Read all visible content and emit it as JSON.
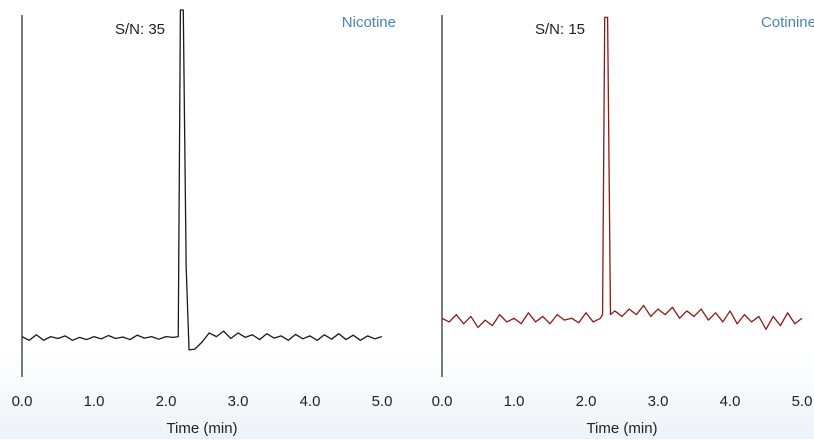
{
  "chart_data": [
    {
      "type": "line",
      "title": "Nicotine",
      "annotation": "S/N: 35",
      "xlabel": "Time (min)",
      "xlim": [
        0,
        5
      ],
      "ylim": [
        0,
        100
      ],
      "xticks": [
        {
          "value": 0,
          "label": "0.0"
        },
        {
          "value": 1,
          "label": "1.0"
        },
        {
          "value": 2,
          "label": "2.0"
        },
        {
          "value": 3,
          "label": "3.0"
        },
        {
          "value": 4,
          "label": "4.0"
        },
        {
          "value": 5,
          "label": "5.0"
        }
      ],
      "x": [
        0.0,
        0.1,
        0.2,
        0.3,
        0.4,
        0.5,
        0.6,
        0.7,
        0.8,
        0.9,
        1.0,
        1.1,
        1.2,
        1.3,
        1.4,
        1.5,
        1.6,
        1.7,
        1.8,
        1.9,
        2.0,
        2.1,
        2.17,
        2.2,
        2.24,
        2.28,
        2.32,
        2.4,
        2.5,
        2.6,
        2.7,
        2.8,
        2.9,
        3.0,
        3.1,
        3.2,
        3.3,
        3.4,
        3.5,
        3.6,
        3.7,
        3.8,
        3.9,
        4.0,
        4.1,
        4.2,
        4.3,
        4.4,
        4.5,
        4.6,
        4.7,
        4.8,
        4.9,
        5.0
      ],
      "series": [
        {
          "color": "#1a1a1a",
          "values": [
            11,
            10,
            11.5,
            10,
            11,
            10.5,
            11.2,
            10,
            10.8,
            10.2,
            11,
            10.4,
            11.3,
            10.5,
            10.9,
            10.2,
            11.4,
            10.6,
            11,
            10.3,
            11,
            10.8,
            11,
            100,
            100,
            30,
            7.4,
            7.6,
            9.5,
            12,
            11,
            12.5,
            10.5,
            12,
            10.8,
            11.5,
            10.2,
            11.8,
            10.6,
            11.2,
            10,
            11.6,
            10.4,
            11.2,
            10,
            11.5,
            10.3,
            11.8,
            10.2,
            11.4,
            10,
            11.2,
            10.4,
            11
          ]
        }
      ]
    },
    {
      "type": "line",
      "title": "Cotinine",
      "annotation": "S/N: 15",
      "xlabel": "Time (min)",
      "xlim": [
        0,
        5
      ],
      "ylim": [
        0,
        100
      ],
      "xticks": [
        {
          "value": 0,
          "label": "0.0"
        },
        {
          "value": 1,
          "label": "1.0"
        },
        {
          "value": 2,
          "label": "2.0"
        },
        {
          "value": 3,
          "label": "3.0"
        },
        {
          "value": 4,
          "label": "4.0"
        },
        {
          "value": 5,
          "label": "5.0"
        }
      ],
      "x": [
        0.0,
        0.1,
        0.2,
        0.3,
        0.4,
        0.5,
        0.6,
        0.7,
        0.8,
        0.9,
        1.0,
        1.1,
        1.2,
        1.3,
        1.4,
        1.5,
        1.6,
        1.7,
        1.8,
        1.9,
        2.0,
        2.1,
        2.2,
        2.23,
        2.26,
        2.3,
        2.34,
        2.4,
        2.5,
        2.6,
        2.7,
        2.8,
        2.9,
        3.0,
        3.1,
        3.2,
        3.3,
        3.4,
        3.5,
        3.6,
        3.7,
        3.8,
        3.9,
        4.0,
        4.1,
        4.2,
        4.3,
        4.4,
        4.5,
        4.6,
        4.7,
        4.8,
        4.9,
        5.0
      ],
      "series": [
        {
          "color": "#8b1a1a",
          "values": [
            16,
            15,
            17,
            14.5,
            16.5,
            13.5,
            15.5,
            14,
            17,
            15,
            16,
            14.5,
            17.5,
            15,
            16.5,
            14.5,
            17,
            15.5,
            16,
            14.8,
            17.5,
            15,
            16,
            17,
            98,
            98,
            17,
            18,
            16.5,
            18.5,
            17,
            19.5,
            16.5,
            18.5,
            17,
            19,
            16,
            18,
            16.5,
            18.5,
            15.5,
            17.5,
            15,
            18,
            14.5,
            17,
            15,
            16.5,
            13,
            16.5,
            14,
            17.5,
            14.5,
            16
          ]
        }
      ]
    }
  ]
}
